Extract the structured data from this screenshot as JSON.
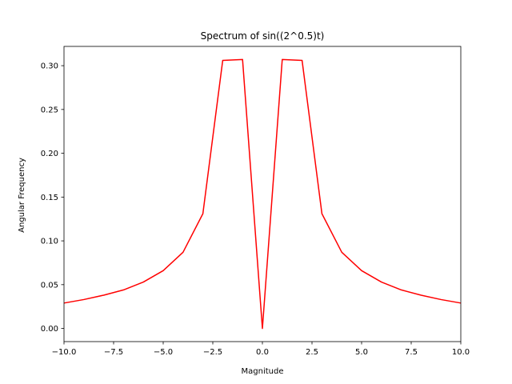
{
  "chart_data": {
    "type": "line",
    "title": "Spectrum of sin((2^0.5)t)",
    "xlabel": "Magnitude",
    "ylabel": "Angular Frequency",
    "xlim": [
      -10,
      10
    ],
    "ylim": [
      -0.015,
      0.322
    ],
    "grid": false,
    "line_color": "#ff0000",
    "x_ticks": [
      -10,
      -7.5,
      -5,
      -2.5,
      0,
      2.5,
      5,
      7.5,
      10
    ],
    "x_tick_labels": [
      "−10.0",
      "−7.5",
      "−5.0",
      "−2.5",
      "0.0",
      "2.5",
      "5.0",
      "7.5",
      "10.0"
    ],
    "y_ticks": [
      0,
      0.05,
      0.1,
      0.15,
      0.2,
      0.25,
      0.3
    ],
    "y_tick_labels": [
      "0.00",
      "0.05",
      "0.10",
      "0.15",
      "0.20",
      "0.25",
      "0.30"
    ],
    "series": [
      {
        "x": [
          -10,
          -9,
          -8,
          -7,
          -6,
          -5,
          -4,
          -3,
          -2,
          -1,
          0,
          1,
          2,
          3,
          4,
          5,
          6,
          7,
          8,
          9,
          10
        ],
        "values": [
          0.029,
          0.033,
          0.038,
          0.044,
          0.053,
          0.066,
          0.087,
          0.131,
          0.306,
          0.307,
          0.0,
          0.307,
          0.306,
          0.131,
          0.087,
          0.066,
          0.053,
          0.044,
          0.038,
          0.033,
          0.029
        ]
      }
    ]
  }
}
